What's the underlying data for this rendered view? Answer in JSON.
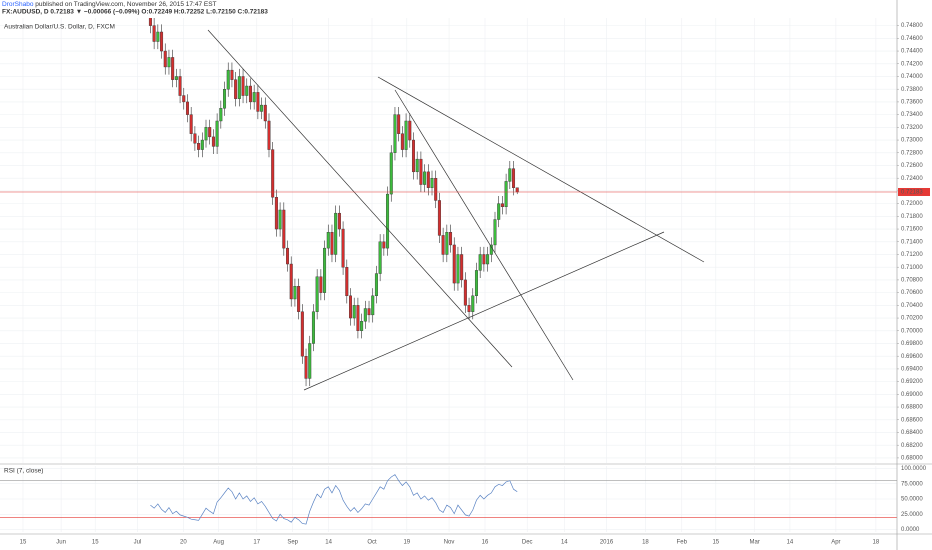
{
  "header": {
    "author": "DrorShabo",
    "published": "published on TradingView.com, November 26, 2015 17:47 EST",
    "quote": "FX:AUDUSD, D 0.72183 ▼ −0.00066 (−0.09%) O:0.72249 H:0.72252 L:0.72150 C:0.72183"
  },
  "chart_data": [
    {
      "type": "candlestick",
      "title": "Australian Dollar/U.S. Dollar, D, FXCM",
      "up_color": "#3dbb3d",
      "down_color": "#d32f2f",
      "open": [
        0.75,
        0.748,
        0.7455,
        0.747,
        0.744,
        0.7415,
        0.743,
        0.7395,
        0.74,
        0.737,
        0.736,
        0.734,
        0.731,
        0.7295,
        0.7285,
        0.73,
        0.732,
        0.7305,
        0.729,
        0.733,
        0.735,
        0.738,
        0.741,
        0.7395,
        0.7365,
        0.74,
        0.737,
        0.7385,
        0.736,
        0.7375,
        0.7345,
        0.7355,
        0.733,
        0.7285,
        0.721,
        0.716,
        0.719,
        0.713,
        0.7105,
        0.705,
        0.707,
        0.703,
        0.696,
        0.6925,
        0.698,
        0.703,
        0.7085,
        0.706,
        0.713,
        0.7155,
        0.712,
        0.7185,
        0.716,
        0.71,
        0.7055,
        0.702,
        0.704,
        0.7,
        0.7015,
        0.7035,
        0.7025,
        0.7055,
        0.709,
        0.714,
        0.713,
        0.7215,
        0.728,
        0.734,
        0.731,
        0.7285,
        0.733,
        0.73,
        0.725,
        0.727,
        0.723,
        0.725,
        0.7225,
        0.724,
        0.7205,
        0.715,
        0.712,
        0.7155,
        0.7135,
        0.7075,
        0.712,
        0.708,
        0.704,
        0.703,
        0.7055,
        0.7095,
        0.712,
        0.7105,
        0.712,
        0.7135,
        0.7175,
        0.72,
        0.7195,
        0.7235,
        0.7255,
        0.72249
      ],
      "high": [
        0.7512,
        0.7492,
        0.7482,
        0.7482,
        0.7452,
        0.7442,
        0.7442,
        0.7412,
        0.7412,
        0.7382,
        0.7372,
        0.7352,
        0.7322,
        0.7307,
        0.7312,
        0.7332,
        0.7332,
        0.7317,
        0.7342,
        0.7362,
        0.7392,
        0.7422,
        0.7422,
        0.7407,
        0.7412,
        0.7412,
        0.7397,
        0.7397,
        0.7387,
        0.7387,
        0.7367,
        0.7367,
        0.7342,
        0.7297,
        0.7222,
        0.7202,
        0.7202,
        0.7142,
        0.7117,
        0.7082,
        0.7082,
        0.7042,
        0.6972,
        0.6992,
        0.7042,
        0.7097,
        0.7097,
        0.7142,
        0.7167,
        0.7167,
        0.7197,
        0.7197,
        0.7172,
        0.7112,
        0.7067,
        0.7052,
        0.7052,
        0.7027,
        0.7047,
        0.7047,
        0.7067,
        0.7102,
        0.7152,
        0.7152,
        0.7227,
        0.7292,
        0.7352,
        0.7352,
        0.7322,
        0.7342,
        0.7342,
        0.7312,
        0.7282,
        0.7282,
        0.7262,
        0.7262,
        0.7252,
        0.7252,
        0.7217,
        0.7162,
        0.7167,
        0.7167,
        0.7147,
        0.7132,
        0.7132,
        0.7092,
        0.7052,
        0.7067,
        0.7107,
        0.7132,
        0.7132,
        0.7132,
        0.7147,
        0.7187,
        0.7212,
        0.7212,
        0.7247,
        0.7267,
        0.7267,
        0.72252
      ],
      "low": [
        0.7468,
        0.7443,
        0.7443,
        0.7428,
        0.7403,
        0.7403,
        0.7383,
        0.7383,
        0.7358,
        0.7348,
        0.7328,
        0.7298,
        0.7283,
        0.7273,
        0.7273,
        0.7288,
        0.7293,
        0.7278,
        0.7278,
        0.7318,
        0.7338,
        0.7368,
        0.7383,
        0.7353,
        0.7353,
        0.7358,
        0.7358,
        0.7348,
        0.7348,
        0.7333,
        0.7333,
        0.7318,
        0.7273,
        0.7198,
        0.7148,
        0.7148,
        0.7118,
        0.7093,
        0.7038,
        0.7038,
        0.7018,
        0.6948,
        0.6913,
        0.6913,
        0.6968,
        0.7018,
        0.7048,
        0.7048,
        0.7118,
        0.7108,
        0.7108,
        0.7148,
        0.7088,
        0.7043,
        0.7008,
        0.7008,
        0.6988,
        0.6988,
        0.7003,
        0.7013,
        0.7013,
        0.7043,
        0.7078,
        0.7118,
        0.7118,
        0.7203,
        0.7268,
        0.7298,
        0.7273,
        0.7273,
        0.7288,
        0.7238,
        0.7238,
        0.7218,
        0.7218,
        0.7213,
        0.7213,
        0.7193,
        0.7138,
        0.7108,
        0.7108,
        0.7123,
        0.7063,
        0.7063,
        0.7068,
        0.7028,
        0.7018,
        0.7018,
        0.7043,
        0.7083,
        0.7093,
        0.7093,
        0.7108,
        0.7123,
        0.7163,
        0.7183,
        0.7183,
        0.7223,
        0.7213,
        0.7215
      ],
      "close": [
        0.748,
        0.7455,
        0.747,
        0.744,
        0.7415,
        0.743,
        0.7395,
        0.74,
        0.737,
        0.736,
        0.734,
        0.731,
        0.7295,
        0.7285,
        0.73,
        0.732,
        0.7305,
        0.729,
        0.733,
        0.735,
        0.738,
        0.741,
        0.7395,
        0.7365,
        0.74,
        0.737,
        0.7385,
        0.736,
        0.7375,
        0.7345,
        0.7355,
        0.733,
        0.7285,
        0.721,
        0.716,
        0.719,
        0.713,
        0.7105,
        0.705,
        0.707,
        0.703,
        0.696,
        0.6925,
        0.698,
        0.703,
        0.7085,
        0.706,
        0.713,
        0.7155,
        0.712,
        0.7185,
        0.716,
        0.71,
        0.7055,
        0.702,
        0.704,
        0.7,
        0.7015,
        0.7035,
        0.7025,
        0.7055,
        0.709,
        0.714,
        0.713,
        0.7215,
        0.728,
        0.734,
        0.731,
        0.7285,
        0.733,
        0.73,
        0.725,
        0.727,
        0.723,
        0.725,
        0.7225,
        0.724,
        0.7205,
        0.715,
        0.712,
        0.7155,
        0.7135,
        0.7075,
        0.712,
        0.708,
        0.704,
        0.703,
        0.7055,
        0.7095,
        0.712,
        0.7105,
        0.712,
        0.7135,
        0.7175,
        0.72,
        0.7195,
        0.7235,
        0.7255,
        0.72249,
        0.72183
      ],
      "last_price_color": "#e53935",
      "xlim": [
        -40.6,
        201.5
      ],
      "xticks": [
        {
          "value": -34.4,
          "label": "15"
        },
        {
          "value": -24.1,
          "label": "Jun"
        },
        {
          "value": -14.9,
          "label": "15"
        },
        {
          "value": -3.5,
          "label": "Jul"
        },
        {
          "value": 8.9,
          "label": "20"
        },
        {
          "value": 18.4,
          "label": "Aug"
        },
        {
          "value": 28.7,
          "label": "17"
        },
        {
          "value": 38.4,
          "label": "Sep"
        },
        {
          "value": 48.1,
          "label": "14"
        },
        {
          "value": 59.8,
          "label": "Oct"
        },
        {
          "value": 69.2,
          "label": "19"
        },
        {
          "value": 80.6,
          "label": "Nov"
        },
        {
          "value": 90.3,
          "label": "16"
        },
        {
          "value": 101.7,
          "label": "Dec"
        },
        {
          "value": 111.7,
          "label": "14"
        },
        {
          "value": 123.1,
          "label": "2016"
        },
        {
          "value": 133.6,
          "label": "18"
        },
        {
          "value": 143.4,
          "label": "Feb"
        },
        {
          "value": 152.6,
          "label": "15"
        },
        {
          "value": 163.1,
          "label": "Mar"
        },
        {
          "value": 172.6,
          "label": "14"
        },
        {
          "value": 185.0,
          "label": "Apr"
        },
        {
          "value": 195.8,
          "label": "18"
        }
      ],
      "ylim": [
        0.6792,
        0.7492
      ],
      "yticks": [
        {
          "value": 0.68,
          "label": "0.68000"
        },
        {
          "value": 0.682,
          "label": "0.68200"
        },
        {
          "value": 0.684,
          "label": "0.68400"
        },
        {
          "value": 0.686,
          "label": "0.68600"
        },
        {
          "value": 0.688,
          "label": "0.68800"
        },
        {
          "value": 0.69,
          "label": "0.69000"
        },
        {
          "value": 0.692,
          "label": "0.69200"
        },
        {
          "value": 0.694,
          "label": "0.69400"
        },
        {
          "value": 0.696,
          "label": "0.69600"
        },
        {
          "value": 0.698,
          "label": "0.69800"
        },
        {
          "value": 0.7,
          "label": "0.70000"
        },
        {
          "value": 0.702,
          "label": "0.70200"
        },
        {
          "value": 0.704,
          "label": "0.70400"
        },
        {
          "value": 0.706,
          "label": "0.70600"
        },
        {
          "value": 0.708,
          "label": "0.70800"
        },
        {
          "value": 0.71,
          "label": "0.71000"
        },
        {
          "value": 0.712,
          "label": "0.71200"
        },
        {
          "value": 0.714,
          "label": "0.71400"
        },
        {
          "value": 0.716,
          "label": "0.71600"
        },
        {
          "value": 0.718,
          "label": "0.71800"
        },
        {
          "value": 0.72,
          "label": "0.72000"
        },
        {
          "value": 0.722,
          "label": "0.72200"
        },
        {
          "value": 0.724,
          "label": "0.72400"
        },
        {
          "value": 0.726,
          "label": "0.72600"
        },
        {
          "value": 0.728,
          "label": "0.72800"
        },
        {
          "value": 0.73,
          "label": "0.73000"
        },
        {
          "value": 0.732,
          "label": "0.73200"
        },
        {
          "value": 0.734,
          "label": "0.73400"
        },
        {
          "value": 0.736,
          "label": "0.73600"
        },
        {
          "value": 0.738,
          "label": "0.73800"
        },
        {
          "value": 0.74,
          "label": "0.74000"
        },
        {
          "value": 0.742,
          "label": "0.74200"
        },
        {
          "value": 0.744,
          "label": "0.74400"
        },
        {
          "value": 0.746,
          "label": "0.74600"
        },
        {
          "value": 0.748,
          "label": "0.74800"
        }
      ],
      "grid": true
    },
    {
      "type": "line",
      "title": "RSI (7, close)",
      "color": "#5b84c4",
      "values": [
        40,
        35,
        42,
        33,
        28,
        36,
        26,
        30,
        24,
        22,
        20,
        17,
        16,
        15,
        25,
        35,
        30,
        26,
        45,
        52,
        60,
        68,
        62,
        50,
        60,
        50,
        55,
        46,
        52,
        42,
        46,
        38,
        28,
        18,
        14,
        25,
        18,
        16,
        12,
        20,
        16,
        10,
        9,
        30,
        45,
        58,
        52,
        66,
        70,
        60,
        72,
        64,
        48,
        38,
        30,
        36,
        28,
        34,
        42,
        40,
        50,
        60,
        70,
        66,
        80,
        86,
        90,
        80,
        72,
        78,
        70,
        56,
        60,
        50,
        55,
        48,
        52,
        44,
        32,
        28,
        40,
        36,
        26,
        40,
        32,
        24,
        22,
        32,
        48,
        56,
        50,
        56,
        60,
        70,
        74,
        72,
        78,
        80,
        66,
        62
      ],
      "bands": [
        80,
        20
      ],
      "band_colors": [
        "#999999",
        "#e53935"
      ],
      "ylim": [
        -4,
        104
      ],
      "yticks": [
        {
          "value": 0,
          "label": "0.0000"
        },
        {
          "value": 25,
          "label": "25.0000"
        },
        {
          "value": 50,
          "label": "50.0000"
        },
        {
          "value": 75,
          "label": "75.0000"
        },
        {
          "value": 100,
          "label": "100.0000"
        }
      ],
      "grid": true
    }
  ]
}
